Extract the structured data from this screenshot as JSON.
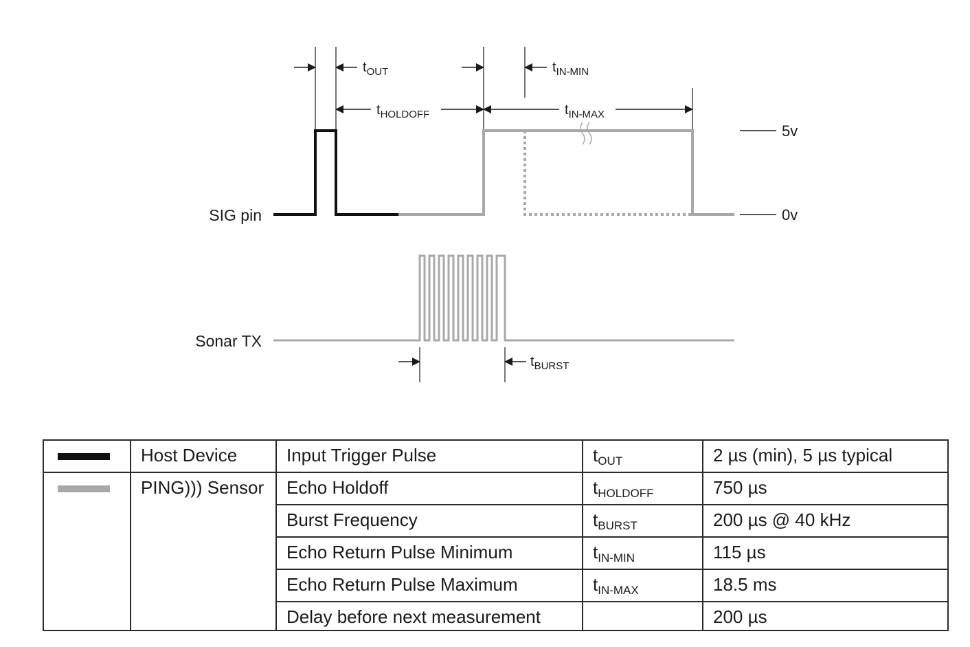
{
  "diagram": {
    "signals": [
      {
        "name": "SIG pin"
      },
      {
        "name": "Sonar TX"
      }
    ],
    "voltage_levels": [
      "5v",
      "0v"
    ],
    "timing_labels": [
      {
        "sym": "t",
        "sub": "OUT"
      },
      {
        "sym": "t",
        "sub": "IN-MIN"
      },
      {
        "sym": "t",
        "sub": "HOLDOFF"
      },
      {
        "sym": "t",
        "sub": "IN-MAX"
      },
      {
        "sym": "t",
        "sub": "BURST"
      }
    ],
    "colors": {
      "host": "#111111",
      "sensor": "#a8a8a8"
    }
  },
  "table": {
    "owners": [
      {
        "label": "Host Device",
        "color": "#111111"
      },
      {
        "label": "PING))) Sensor",
        "color": "#a8a8a8"
      }
    ],
    "rows": [
      {
        "param": "Input Trigger Pulse",
        "sym": "t",
        "sub": "OUT",
        "value": "2 µs (min), 5 µs typical"
      },
      {
        "param": "Echo Holdoff",
        "sym": "t",
        "sub": "HOLDOFF",
        "value": "750 µs"
      },
      {
        "param": "Burst Frequency",
        "sym": "t",
        "sub": "BURST",
        "value": "200 µs @ 40 kHz"
      },
      {
        "param": "Echo Return Pulse Minimum",
        "sym": "t",
        "sub": "IN-MIN",
        "value": "115 µs"
      },
      {
        "param": "Echo Return Pulse Maximum",
        "sym": "t",
        "sub": "IN-MAX",
        "value": "18.5 ms"
      },
      {
        "param": "Delay before next measurement",
        "sym": "",
        "sub": "",
        "value": "200 µs"
      }
    ]
  }
}
